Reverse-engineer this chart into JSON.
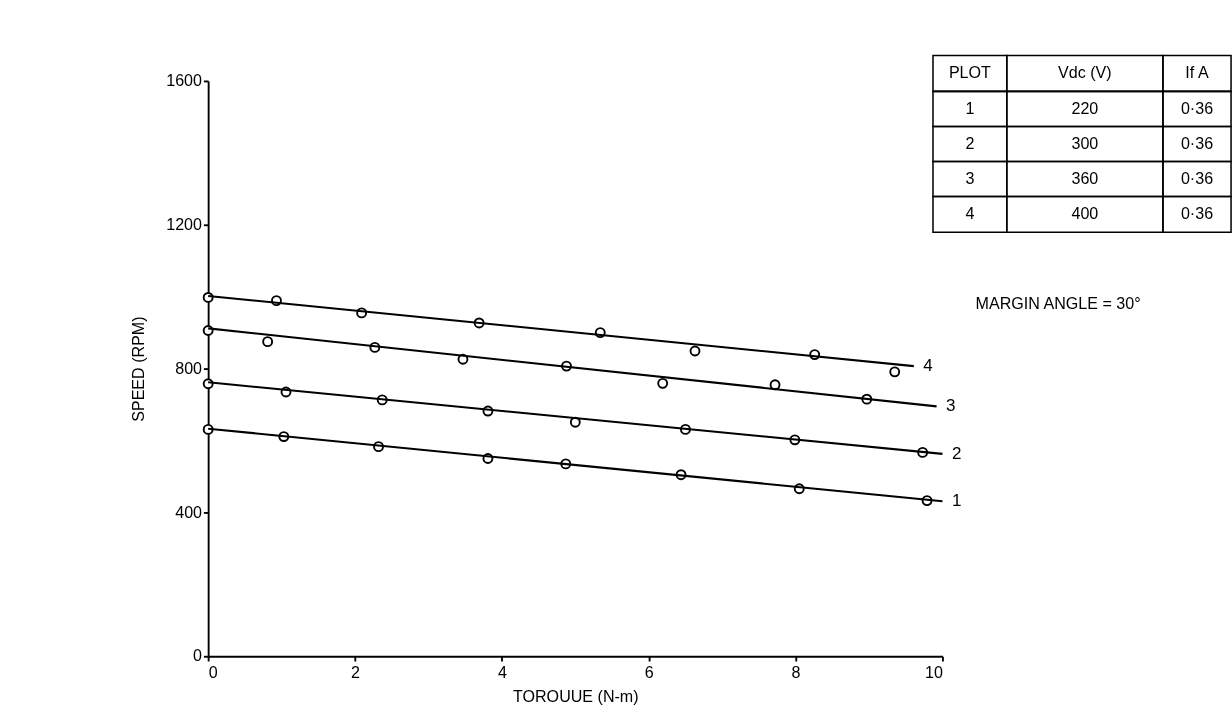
{
  "chart_data": {
    "type": "scatter",
    "xlabel": "TOROUUE (N-m)",
    "ylabel": "SPEED (RPM)",
    "xlim": [
      0,
      10
    ],
    "ylim": [
      0,
      1600
    ],
    "xticks": [
      0,
      2,
      4,
      6,
      8,
      10
    ],
    "yticks": [
      0,
      400,
      800,
      1200,
      1600
    ],
    "grid": false,
    "legend": "top right",
    "marker": "circle",
    "series": [
      {
        "color": "#000000",
        "x": [
          0,
          1.03,
          2.32,
          3.81,
          4.87,
          6.44,
          8.05,
          9.79
        ],
        "values": [
          631,
          611,
          583,
          550,
          535,
          505,
          466,
          433
        ]
      },
      {
        "color": "#000000",
        "x": [
          0,
          1.06,
          2.37,
          3.81,
          5.0,
          6.5,
          7.99,
          9.73
        ],
        "values": [
          758,
          735,
          713,
          682,
          651,
          631,
          602,
          567
        ]
      },
      {
        "color": "#000000",
        "x": [
          0,
          0.81,
          2.27,
          3.47,
          4.88,
          6.19,
          7.72,
          8.97
        ],
        "values": [
          906,
          875,
          859,
          826,
          807,
          759,
          755,
          715
        ]
      },
      {
        "color": "#000000",
        "x": [
          0,
          0.93,
          2.09,
          3.69,
          5.34,
          6.63,
          8.26,
          9.35
        ],
        "values": [
          998,
          989,
          955,
          927,
          900,
          849,
          839,
          791
        ]
      },
      {
        "type": "line",
        "name": "1",
        "color": "#000000",
        "marker": "none",
        "x": [
          0,
          10
        ],
        "values": [
          633,
          431
        ]
      },
      {
        "type": "line",
        "name": "2",
        "color": "#000000",
        "marker": "none",
        "x": [
          0,
          10
        ],
        "values": [
          762,
          563
        ]
      },
      {
        "type": "line",
        "name": "3",
        "color": "#000000",
        "marker": "none",
        "x": [
          0,
          9.92
        ],
        "values": [
          912,
          695
        ]
      },
      {
        "type": "line",
        "name": "4",
        "color": "#000000",
        "marker": "none",
        "x": [
          0,
          9.61
        ],
        "values": [
          1002,
          807
        ]
      }
    ],
    "annotations": [
      "PLOT",
      "Vdc  (V)",
      "If  A",
      "1",
      "220",
      "0·36",
      "2",
      "300",
      "0·36",
      "3",
      "360",
      "0·36",
      "4",
      "400",
      "0·36",
      "MARGIN ANGLE = 30°"
    ]
  }
}
